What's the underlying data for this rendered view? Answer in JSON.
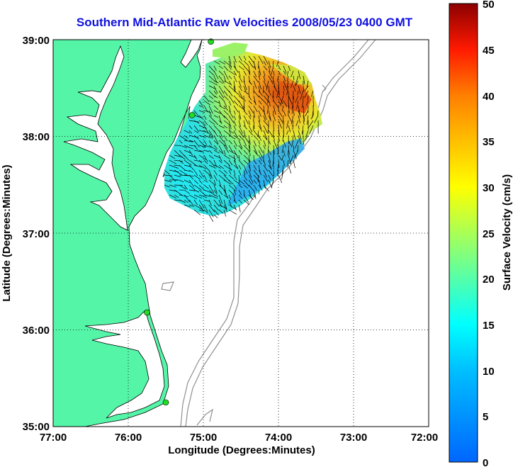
{
  "title": "Southern Mid-Atlantic Raw Velocities 2008/05/23 0400 GMT",
  "x_axis": {
    "label": "Longitude (Degrees:Minutes)",
    "ticks": [
      "77:00",
      "76:00",
      "75:00",
      "74:00",
      "73:00",
      "72:00"
    ],
    "range_deg": [
      -77,
      -72
    ]
  },
  "y_axis": {
    "label": "Latitude (Degrees:Minutes)",
    "ticks": [
      "39:00",
      "38:00",
      "37:00",
      "36:00",
      "35:00"
    ],
    "range_deg": [
      35,
      39
    ]
  },
  "colorbar": {
    "label": "Surface Velocity (cm/s)",
    "ticks": [
      "50",
      "45",
      "40",
      "35",
      "30",
      "25",
      "20",
      "15",
      "10",
      "5",
      "0"
    ],
    "range": [
      0,
      50
    ],
    "colormap": "jet"
  },
  "colors": {
    "land": "#55f5a8",
    "coast_line": "#000000",
    "bathymetry": "#909090",
    "title": "#1010e0",
    "station": "#22dd22"
  },
  "stations": [
    {
      "lon": -74.9,
      "lat": 38.98
    },
    {
      "lon": -75.15,
      "lat": 38.22
    },
    {
      "lon": -75.75,
      "lat": 36.18
    },
    {
      "lon": -75.5,
      "lat": 35.25
    }
  ]
}
